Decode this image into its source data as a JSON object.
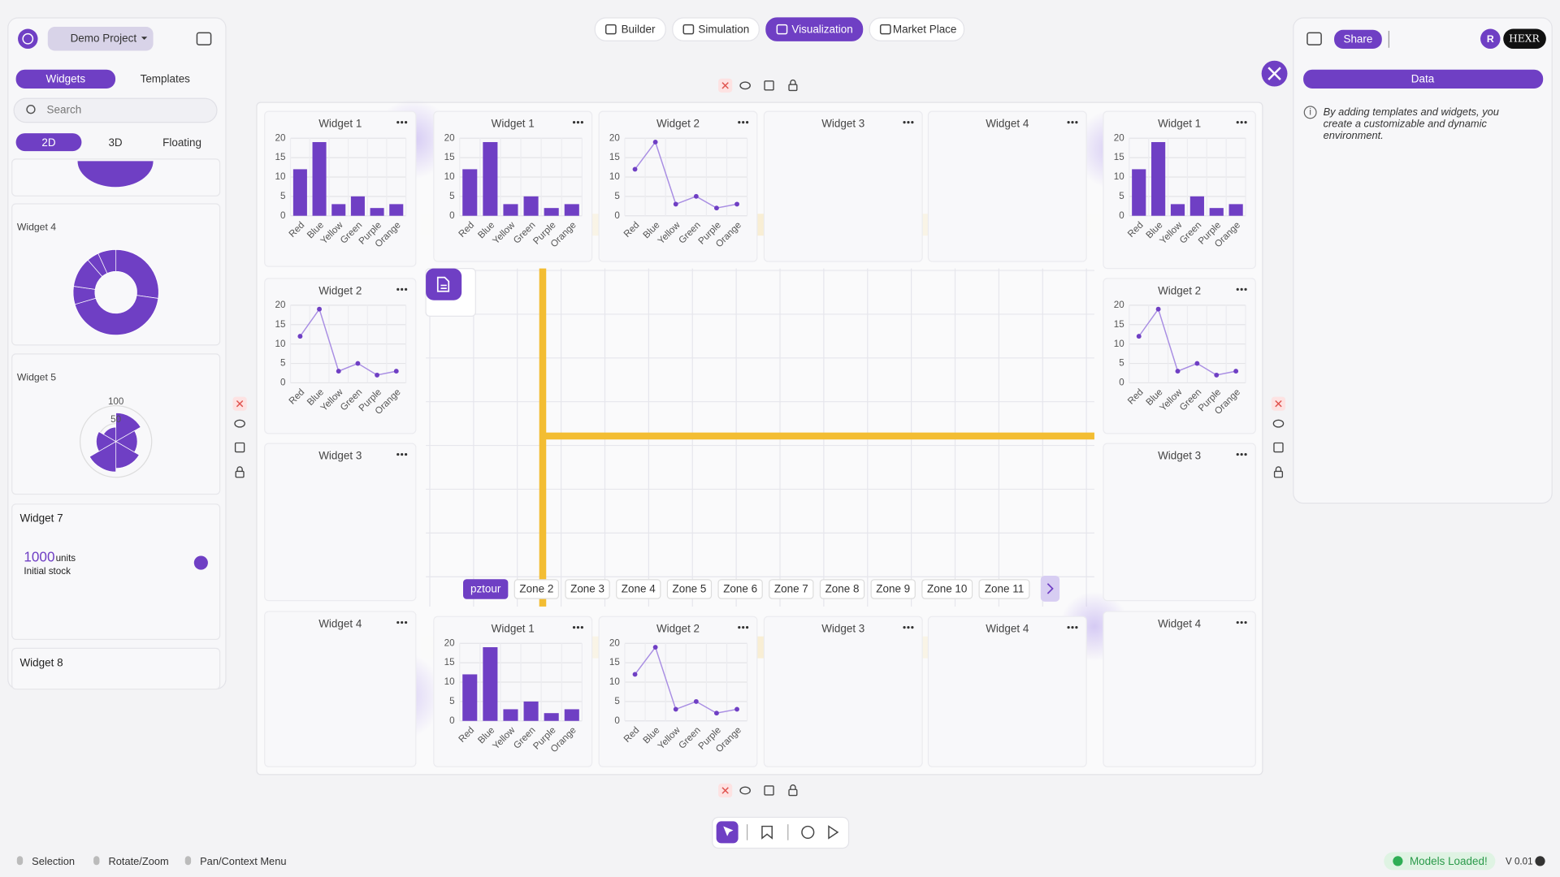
{
  "header": {
    "project": "Demo Project",
    "tabs": [
      "Builder",
      "Simulation",
      "Visualization",
      "Market Place"
    ],
    "active_tab": "Visualization",
    "share": "Share",
    "avatar": "R",
    "brand": "HEXR"
  },
  "sidebar": {
    "tabs": [
      "Widgets",
      "Templates"
    ],
    "search_placeholder": "Search",
    "modes": [
      "2D",
      "3D",
      "Floating"
    ]
  },
  "right_panel": {
    "button": "Data",
    "info_lines": [
      "By adding templates and widgets, you",
      "create a customizable and dynamic",
      "environment."
    ]
  },
  "charts": {
    "categories": [
      "Red",
      "Blue",
      "Yellow",
      "Green",
      "Purple",
      "Orange"
    ],
    "values": [
      12,
      19,
      3,
      5,
      2,
      3
    ],
    "ylim": [
      0,
      20
    ],
    "yticks": [
      0,
      5,
      10,
      15,
      20
    ],
    "color": "#6f3fc4",
    "line_color": "#a98ee3"
  },
  "widgets": [
    {
      "title": "Widget 1",
      "type": "bar"
    },
    {
      "title": "Widget 2",
      "type": "line"
    },
    {
      "title": "Widget 3",
      "type": "empty"
    },
    {
      "title": "Widget 4",
      "type": "doughnut"
    },
    {
      "title": "Widget 5",
      "type": "polar",
      "values": [
        80,
        60,
        75,
        85,
        55,
        40
      ],
      "rlim": [
        0,
        100
      ],
      "rticks": [
        50,
        100
      ]
    },
    {
      "title": "Widget 7",
      "type": "kpi",
      "value": 1000,
      "unit": "units",
      "caption": "Initial stock"
    },
    {
      "title": "Widget 8",
      "type": "empty"
    }
  ],
  "zones": [
    "pztour",
    "Zone 2",
    "Zone 3",
    "Zone 4",
    "Zone 5",
    "Zone 6",
    "Zone 7",
    "Zone 8",
    "Zone 9",
    "Zone 10",
    "Zone 11"
  ],
  "footer": {
    "hints": [
      "Selection",
      "Rotate/Zoom",
      "Pan/Context Menu"
    ],
    "status": "Models Loaded!",
    "version": "V 0.01"
  }
}
